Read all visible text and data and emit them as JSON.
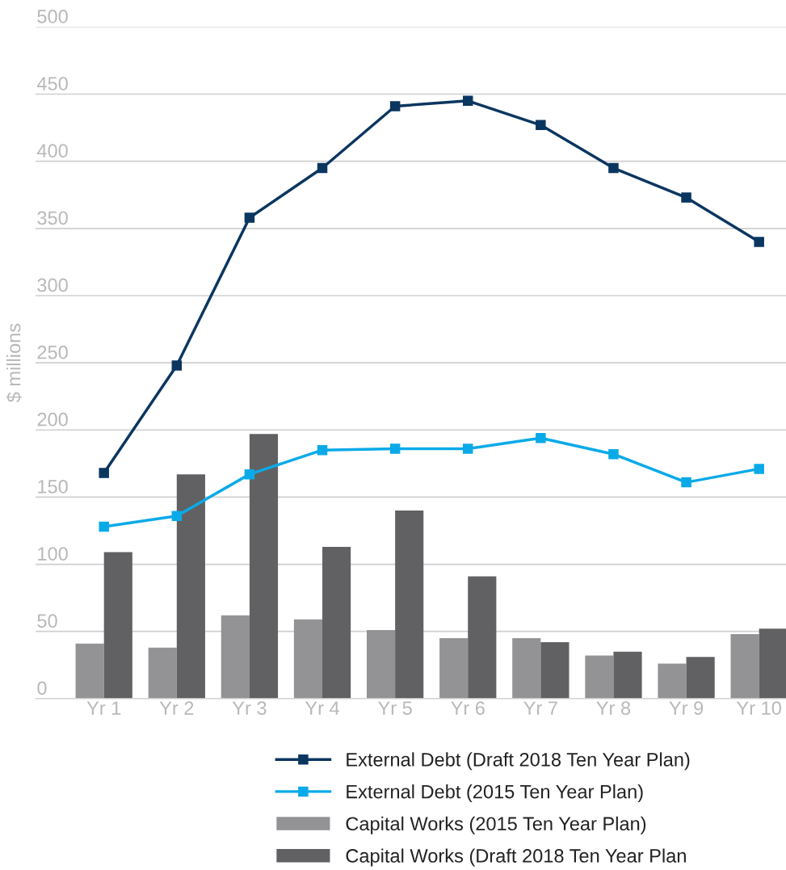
{
  "chart_data": {
    "type": "bar",
    "ylabel": "$ millions",
    "categories": [
      "Yr 1",
      "Yr 2",
      "Yr 3",
      "Yr 4",
      "Yr 5",
      "Yr 6",
      "Yr 7",
      "Yr 8",
      "Yr 9",
      "Yr 10"
    ],
    "series": [
      {
        "name": "External Debt (Draft 2018 Ten Year Plan)",
        "type": "line",
        "color": "#0b3660",
        "values": [
          168,
          248,
          358,
          395,
          441,
          445,
          427,
          395,
          373,
          340
        ]
      },
      {
        "name": "External Debt (2015 Ten Year Plan)",
        "type": "line",
        "color": "#0aaae8",
        "values": [
          128,
          136,
          167,
          185,
          186,
          186,
          194,
          182,
          161,
          171
        ]
      },
      {
        "name": "Capital Works (2015 Ten Year Plan)",
        "color": "#939396",
        "values": [
          41,
          38,
          62,
          59,
          51,
          45,
          45,
          32,
          26,
          48
        ]
      },
      {
        "name": "Capital Works (Draft 2018 Ten Year Plan",
        "color": "#616163",
        "values": [
          109,
          167,
          197,
          113,
          140,
          91,
          42,
          35,
          31,
          52
        ]
      }
    ],
    "ylim": [
      0,
      500
    ],
    "yticks": [
      0,
      50,
      100,
      150,
      200,
      250,
      300,
      350,
      400,
      450,
      500
    ],
    "grid": "y",
    "legend": "bottom",
    "marker": "square",
    "line_style": "solid"
  }
}
